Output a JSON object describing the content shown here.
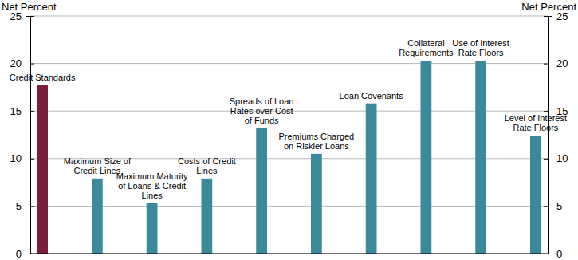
{
  "chart_data": {
    "type": "bar",
    "y_axis_label": "Net Percent",
    "y2_axis_label": "Net Percent",
    "categories": [
      "Credit Standards",
      "Maximum Size of Credit Lines",
      "Maximum Maturity of Loans & Credit Lines",
      "Costs of Credit Lines",
      "Spreads of Loan Rates over Cost of Funds",
      "Premiums Charged on Riskier Loans",
      "Loan Covenants",
      "Collateral Requirements",
      "Use of Interest Rate Floors",
      "Level of Interest Rate Floors"
    ],
    "values": [
      17.7,
      7.9,
      5.3,
      7.9,
      13.2,
      10.5,
      15.8,
      20.3,
      20.3,
      12.4
    ],
    "colors": [
      "#7b1d3c",
      "#3a8a9b",
      "#3a8a9b",
      "#3a8a9b",
      "#3a8a9b",
      "#3a8a9b",
      "#3a8a9b",
      "#3a8a9b",
      "#3a8a9b",
      "#3a8a9b"
    ],
    "ylim": [
      0,
      25
    ],
    "yticks": [
      0,
      5,
      10,
      15,
      20,
      25
    ],
    "y2lim": [
      0,
      25
    ],
    "y2ticks": [
      0,
      5,
      10,
      15,
      20,
      25
    ],
    "grid": true
  }
}
